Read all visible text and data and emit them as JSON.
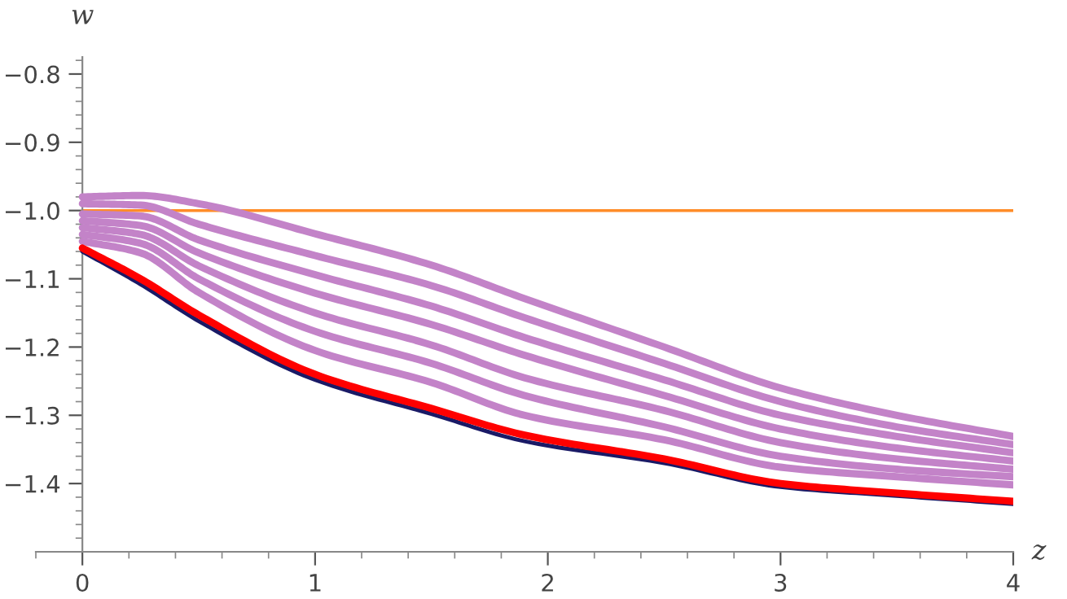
{
  "chart_data": {
    "type": "line",
    "xlabel": "z",
    "ylabel": "w",
    "xlim": [
      -0.2,
      4
    ],
    "ylim": [
      -1.5,
      -0.775
    ],
    "xticks": [
      0,
      1,
      2,
      3,
      4
    ],
    "yticks": [
      {
        "value": -0.8,
        "label": "−0.8"
      },
      {
        "value": -0.9,
        "label": "−0.9"
      },
      {
        "value": -1.0,
        "label": "−1.0"
      },
      {
        "value": -1.1,
        "label": "−1.1"
      },
      {
        "value": -1.2,
        "label": "−1.2"
      },
      {
        "value": -1.3,
        "label": "−1.3"
      },
      {
        "value": -1.4,
        "label": "−1.4"
      }
    ],
    "grid": false,
    "marker": "none",
    "line_style": "solid",
    "x": [
      0,
      0.25,
      0.5,
      1,
      1.5,
      1.9,
      2.5,
      3,
      3.5,
      4
    ],
    "series": [
      {
        "color": "#ff8c28",
        "values": [
          -1.0,
          -1.0,
          -1.0,
          -1.0,
          -1.0,
          -1.0,
          -1.0,
          -1.0,
          -1.0,
          -1.0
        ]
      },
      {
        "color": "#c383c8",
        "values": [
          -0.98,
          -0.978,
          -0.99,
          -1.034,
          -1.08,
          -1.129,
          -1.2,
          -1.26,
          -1.3,
          -1.331
        ]
      },
      {
        "color": "#c383c8",
        "values": [
          -0.99,
          -0.992,
          -1.02,
          -1.066,
          -1.11,
          -1.157,
          -1.224,
          -1.28,
          -1.317,
          -1.343
        ]
      },
      {
        "color": "#c383c8",
        "values": [
          -1.005,
          -1.008,
          -1.043,
          -1.094,
          -1.14,
          -1.186,
          -1.248,
          -1.3,
          -1.331,
          -1.355
        ]
      },
      {
        "color": "#c383c8",
        "values": [
          -1.015,
          -1.022,
          -1.062,
          -1.121,
          -1.167,
          -1.212,
          -1.271,
          -1.32,
          -1.348,
          -1.367
        ]
      },
      {
        "color": "#c383c8",
        "values": [
          -1.025,
          -1.035,
          -1.081,
          -1.15,
          -1.197,
          -1.245,
          -1.293,
          -1.34,
          -1.364,
          -1.379
        ]
      },
      {
        "color": "#c383c8",
        "values": [
          -1.035,
          -1.048,
          -1.1,
          -1.177,
          -1.224,
          -1.271,
          -1.317,
          -1.36,
          -1.379,
          -1.39
        ]
      },
      {
        "color": "#c383c8",
        "values": [
          -1.045,
          -1.062,
          -1.12,
          -1.205,
          -1.252,
          -1.3,
          -1.336,
          -1.376,
          -1.39,
          -1.402
        ]
      },
      {
        "color": "#1a1a66",
        "values": [
          -1.06,
          -1.108,
          -1.162,
          -1.248,
          -1.298,
          -1.338,
          -1.37,
          -1.405,
          -1.418,
          -1.43
        ]
      },
      {
        "color": "#ff0000",
        "values": [
          -1.055,
          -1.1,
          -1.153,
          -1.24,
          -1.29,
          -1.329,
          -1.364,
          -1.4,
          -1.414,
          -1.426
        ]
      }
    ]
  }
}
